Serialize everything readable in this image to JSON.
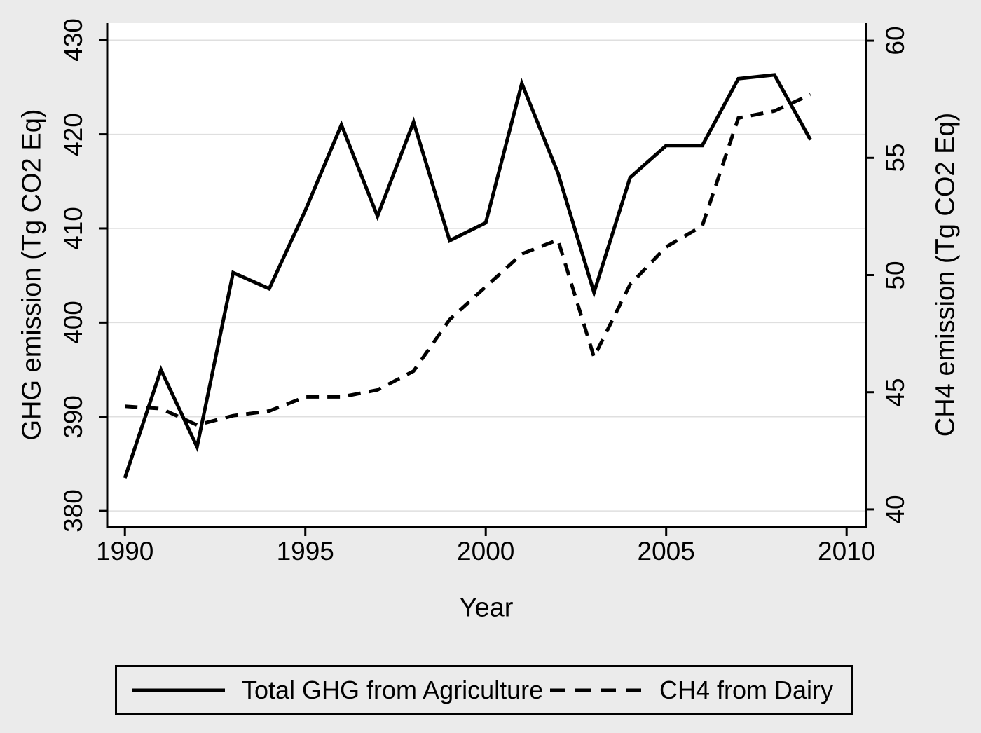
{
  "figure": {
    "background_color": "#ebebeb",
    "plot_background_color": "#ffffff",
    "grid_color": "#dfdfdf",
    "line_color": "#000000"
  },
  "chart_data": {
    "type": "line",
    "title": "",
    "xlabel": "Year",
    "x": [
      1990,
      1991,
      1992,
      1993,
      1994,
      1995,
      1996,
      1997,
      1998,
      1999,
      2000,
      2001,
      2002,
      2003,
      2004,
      2005,
      2006,
      2007,
      2008,
      2009
    ],
    "x_ticks": [
      1990,
      1995,
      2000,
      2005,
      2010
    ],
    "x_range": [
      1989.51,
      2010.54
    ],
    "left_axis": {
      "label": "GHG emission (Tg CO2 Eq)",
      "ticks": [
        380,
        390,
        400,
        410,
        420,
        430
      ],
      "range": [
        378.3,
        431.8
      ]
    },
    "right_axis": {
      "label": "CH4 emission (Tg CO2 Eq)",
      "ticks": [
        40,
        45,
        50,
        55,
        60
      ],
      "range": [
        39.25,
        60.75
      ]
    },
    "grid": "horizontal gridlines at left-axis ticks",
    "legend_position": "bottom boxed",
    "series": [
      {
        "name": "Total GHG from Agriculture",
        "axis": "left",
        "style": "solid",
        "values": [
          383.5,
          395.0,
          386.8,
          405.3,
          403.6,
          411.9,
          421.0,
          411.3,
          421.3,
          408.7,
          410.6,
          425.4,
          415.9,
          403.2,
          415.4,
          418.8,
          418.8,
          425.9,
          426.3,
          419.4
        ]
      },
      {
        "name": "CH4 from Dairy",
        "axis": "right",
        "style": "dashed",
        "values": [
          44.4,
          44.3,
          43.6,
          44.0,
          44.2,
          44.8,
          44.8,
          45.1,
          45.9,
          48.1,
          49.5,
          50.9,
          51.5,
          46.5,
          49.6,
          51.2,
          52.1,
          56.7,
          57.0,
          57.7
        ]
      }
    ]
  }
}
